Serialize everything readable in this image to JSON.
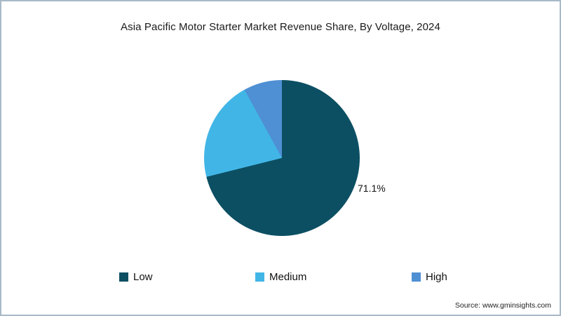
{
  "title": "Asia Pacific Motor Starter Market Revenue Share, By Voltage, 2024",
  "source": "Source: www.gminsights.com",
  "chart_data": {
    "type": "pie",
    "title": "Asia Pacific Motor Starter Market Revenue Share, By Voltage, 2024",
    "categories": [
      "Low",
      "Medium",
      "High"
    ],
    "values": [
      71.1,
      20.9,
      8.0
    ],
    "colors": [
      "#0c4f63",
      "#41b6e6",
      "#4f8fd4"
    ],
    "data_label": "71.1%",
    "data_label_category": "Low",
    "start_angle_deg": 0,
    "direction": "clockwise",
    "legend_position": "bottom"
  },
  "legend": {
    "items": [
      {
        "label": "Low"
      },
      {
        "label": "Medium"
      },
      {
        "label": "High"
      }
    ]
  }
}
